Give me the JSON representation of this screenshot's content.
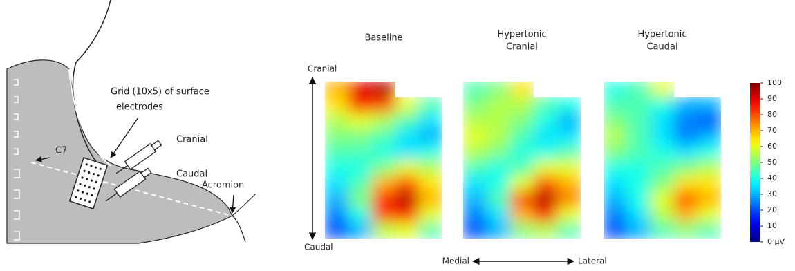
{
  "diagram": {
    "labels": {
      "grid_note": [
        "Grid (10x5) of surface",
        "electrodes"
      ],
      "cranial": "Cranial",
      "caudal": "Caudal",
      "acromion": "Acromion",
      "c7": "C7"
    }
  },
  "maps": [
    {
      "title": [
        "Baseline"
      ],
      "values": [
        [
          70,
          90,
          95,
          null,
          null
        ],
        [
          65,
          85,
          80,
          60,
          45
        ],
        [
          55,
          60,
          55,
          45,
          35
        ],
        [
          50,
          50,
          45,
          35,
          30
        ],
        [
          45,
          45,
          40,
          35,
          40
        ],
        [
          40,
          40,
          50,
          60,
          55
        ],
        [
          35,
          45,
          70,
          80,
          65
        ],
        [
          30,
          50,
          85,
          95,
          70
        ],
        [
          25,
          40,
          80,
          85,
          60
        ],
        [
          20,
          30,
          55,
          60,
          45
        ]
      ]
    },
    {
      "title": [
        "Hypertonic",
        "Cranial"
      ],
      "values": [
        [
          45,
          50,
          65,
          null,
          null
        ],
        [
          50,
          55,
          55,
          45,
          40
        ],
        [
          55,
          55,
          50,
          40,
          30
        ],
        [
          60,
          55,
          45,
          35,
          35
        ],
        [
          55,
          50,
          40,
          40,
          45
        ],
        [
          45,
          40,
          45,
          60,
          60
        ],
        [
          35,
          40,
          60,
          80,
          70
        ],
        [
          30,
          45,
          80,
          95,
          75
        ],
        [
          25,
          35,
          70,
          85,
          60
        ],
        [
          20,
          30,
          50,
          55,
          45
        ]
      ]
    },
    {
      "title": [
        "Hypertonic",
        "Caudal"
      ],
      "values": [
        [
          40,
          45,
          60,
          null,
          null
        ],
        [
          45,
          45,
          40,
          30,
          30
        ],
        [
          50,
          45,
          35,
          25,
          20
        ],
        [
          55,
          45,
          35,
          25,
          30
        ],
        [
          50,
          45,
          40,
          35,
          40
        ],
        [
          40,
          40,
          45,
          50,
          55
        ],
        [
          35,
          40,
          50,
          65,
          65
        ],
        [
          30,
          40,
          60,
          80,
          70
        ],
        [
          25,
          35,
          55,
          70,
          60
        ],
        [
          20,
          30,
          45,
          50,
          45
        ]
      ]
    }
  ],
  "axes": {
    "top": "Cranial",
    "bottom": "Caudal",
    "left": "Medial",
    "right": "Lateral"
  },
  "colorbar": {
    "colormap": "jet",
    "lim": [
      0,
      100
    ],
    "ticks": [
      {
        "value": 0,
        "label": "0 µV"
      },
      10,
      20,
      30,
      40,
      50,
      60,
      70,
      80,
      90,
      100
    ]
  }
}
